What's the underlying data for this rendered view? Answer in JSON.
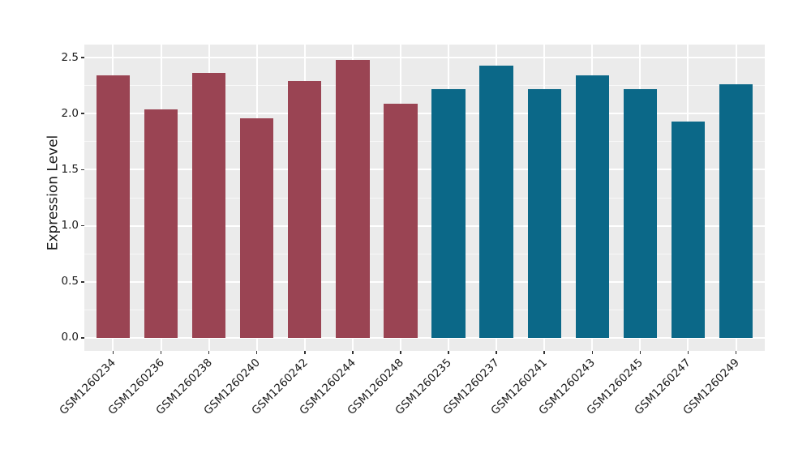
{
  "chart_data": {
    "type": "bar",
    "title": "",
    "xlabel": "",
    "ylabel": "Expression Level",
    "categories": [
      "GSM1260234",
      "GSM1260236",
      "GSM1260238",
      "GSM1260240",
      "GSM1260242",
      "GSM1260244",
      "GSM1260248",
      "GSM1260235",
      "GSM1260237",
      "GSM1260241",
      "GSM1260243",
      "GSM1260245",
      "GSM1260247",
      "GSM1260249"
    ],
    "values": [
      2.34,
      2.04,
      2.36,
      1.96,
      2.29,
      2.48,
      2.09,
      2.22,
      2.43,
      2.22,
      2.34,
      2.22,
      1.93,
      2.26
    ],
    "bar_colors": [
      "#9a4453",
      "#9a4453",
      "#9a4453",
      "#9a4453",
      "#9a4453",
      "#9a4453",
      "#9a4453",
      "#0b6888",
      "#0b6888",
      "#0b6888",
      "#0b6888",
      "#0b6888",
      "#0b6888",
      "#0b6888"
    ],
    "groups": [
      {
        "name": "group-1",
        "color": "#9a4453",
        "count": 7
      },
      {
        "name": "group-2",
        "color": "#0b6888",
        "count": 7
      }
    ],
    "bar_width": 0.7,
    "ytick_values": [
      0.0,
      0.5,
      1.0,
      1.5,
      2.0,
      2.5
    ],
    "ytick_labels": [
      "0.0",
      "0.5",
      "1.0",
      "1.5",
      "2.0",
      "2.5"
    ],
    "ytick_minor_values": [
      0.25,
      0.75,
      1.25,
      1.75,
      2.25
    ],
    "ylim": [
      -0.116,
      2.616
    ],
    "xlim": [
      0.4,
      14.6
    ],
    "grid": "major+minor",
    "legend": "none",
    "x_label_angle_deg": 45
  },
  "style": {
    "panel_background": "#ebebeb",
    "grid_major_color": "#ffffff",
    "grid_minor_color": "rgba(255,255,255,0.65)",
    "axis_text_color": "#1a1a1a",
    "tick_mark_color": "#333333",
    "figure_background": "#ffffff"
  }
}
